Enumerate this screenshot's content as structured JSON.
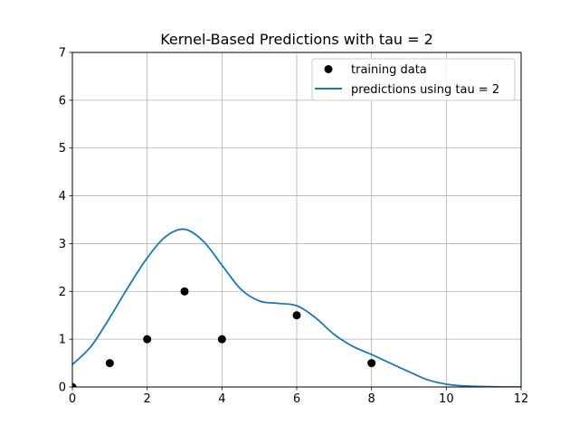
{
  "chart_data": {
    "type": "line",
    "title": "Kernel-Based Predictions with tau = 2",
    "xlabel": "",
    "ylabel": "",
    "xlim": [
      0,
      12
    ],
    "ylim": [
      0,
      7
    ],
    "xticks": [
      "0",
      "2",
      "4",
      "6",
      "8",
      "10",
      "12"
    ],
    "yticks": [
      "0",
      "1",
      "2",
      "3",
      "4",
      "5",
      "6",
      "7"
    ],
    "grid": true,
    "legend_position": "top-right",
    "series": [
      {
        "name": "training data",
        "kind": "scatter",
        "color": "#000000",
        "x": [
          0,
          1,
          2,
          3,
          4,
          6,
          8
        ],
        "y": [
          0,
          0.5,
          1,
          2,
          1,
          1.5,
          0.5
        ]
      },
      {
        "name": "predictions using tau = 2",
        "kind": "line",
        "color": "#1f77b4",
        "x": [
          0,
          0.5,
          1,
          1.5,
          2,
          2.5,
          3,
          3.5,
          4,
          4.5,
          5,
          5.5,
          6,
          6.5,
          7,
          7.5,
          8,
          8.5,
          9,
          9.5,
          10,
          10.5,
          11,
          11.5,
          12
        ],
        "y": [
          0.47,
          0.85,
          1.45,
          2.1,
          2.7,
          3.15,
          3.3,
          3.05,
          2.55,
          2.05,
          1.8,
          1.75,
          1.7,
          1.45,
          1.1,
          0.85,
          0.68,
          0.5,
          0.32,
          0.15,
          0.06,
          0.02,
          0.01,
          0,
          0
        ]
      }
    ]
  }
}
